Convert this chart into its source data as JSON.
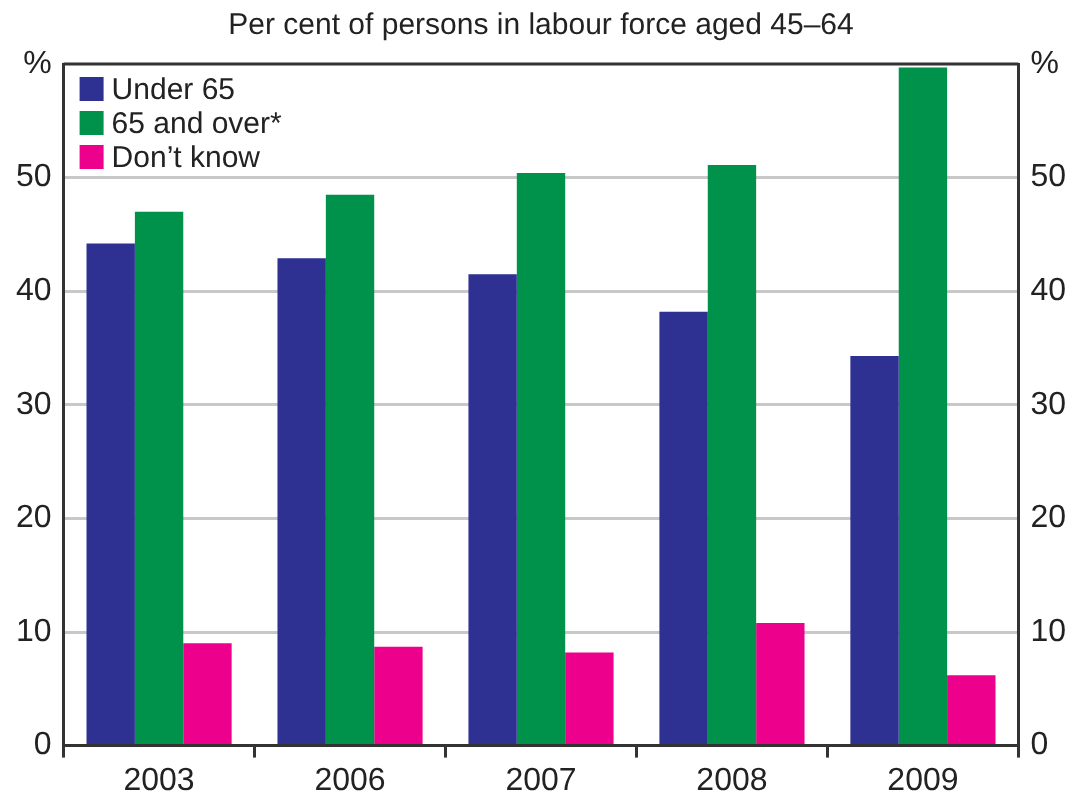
{
  "chart_data": {
    "type": "bar",
    "title": "Per cent of persons in labour force aged 45–64",
    "categories": [
      "2003",
      "2006",
      "2007",
      "2008",
      "2009"
    ],
    "series": [
      {
        "name": "Under 65",
        "color": "#2e3192",
        "values": [
          44.2,
          42.9,
          41.5,
          38.2,
          34.3
        ]
      },
      {
        "name": "65 and over*",
        "color": "#00914b",
        "values": [
          47.0,
          48.5,
          50.4,
          51.1,
          59.7
        ]
      },
      {
        "name": "Don’t know",
        "color": "#ec008c",
        "values": [
          9.0,
          8.7,
          8.2,
          10.8,
          6.2
        ]
      }
    ],
    "ylim": [
      0,
      60
    ],
    "yticks": [
      0,
      10,
      20,
      30,
      40,
      50,
      {
        "value": 60,
        "label": "%"
      }
    ],
    "y2lim": [
      0,
      60
    ],
    "y2ticks": [
      0,
      10,
      20,
      30,
      40,
      50,
      {
        "value": 60,
        "label": "%"
      }
    ],
    "grid": "y",
    "legend": "top left"
  }
}
